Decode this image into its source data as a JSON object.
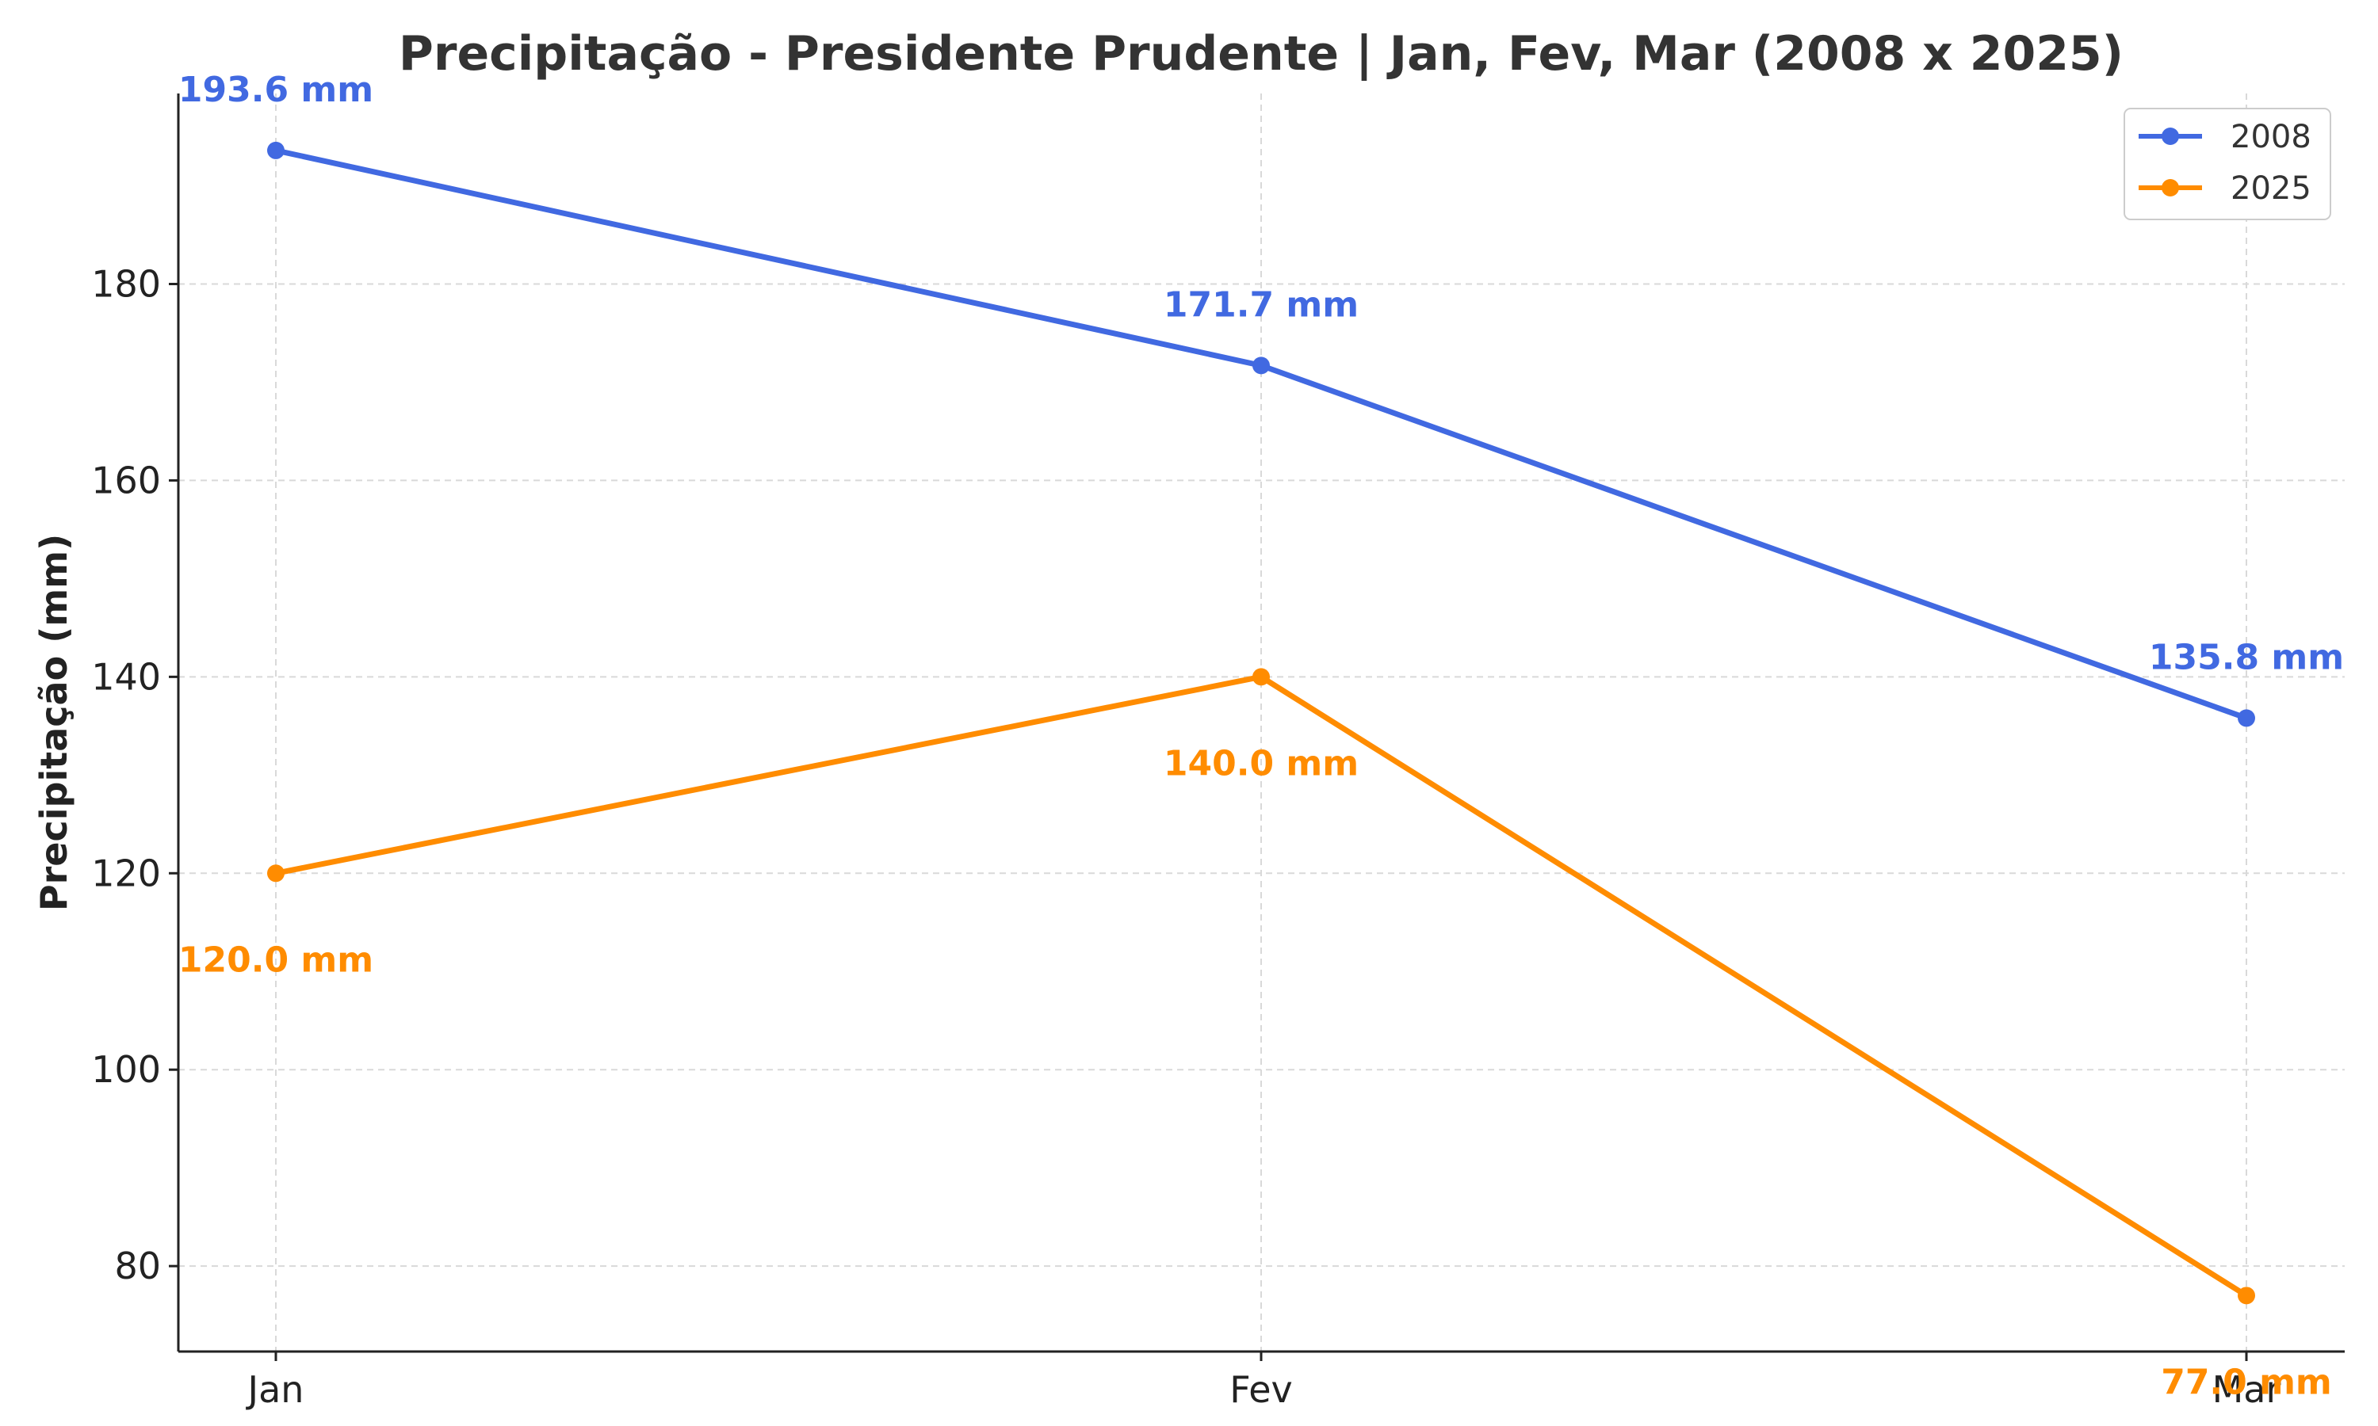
{
  "chart_data": {
    "type": "line",
    "title": "Precipitação - Presidente Prudente | Jan, Fev, Mar (2008 x 2025)",
    "xlabel": "",
    "ylabel": "Precipitação (mm)",
    "categories": [
      "Jan",
      "Fev",
      "Mar"
    ],
    "ylim": [
      71.3,
      199.4
    ],
    "yticks": [
      80,
      100,
      120,
      140,
      160,
      180
    ],
    "grid": true,
    "legend_position": "top-right",
    "series": [
      {
        "name": "2008",
        "color": "#4169E1",
        "values": [
          193.6,
          171.7,
          135.8
        ],
        "labels": [
          "193.6 mm",
          "171.7 mm",
          "135.8 mm"
        ],
        "label_position": "above"
      },
      {
        "name": "2025",
        "color": "#FF8C00",
        "values": [
          120.0,
          140.0,
          77.0
        ],
        "labels": [
          "120.0 mm",
          "140.0 mm",
          "77.0 mm"
        ],
        "label_position": "below"
      }
    ]
  }
}
